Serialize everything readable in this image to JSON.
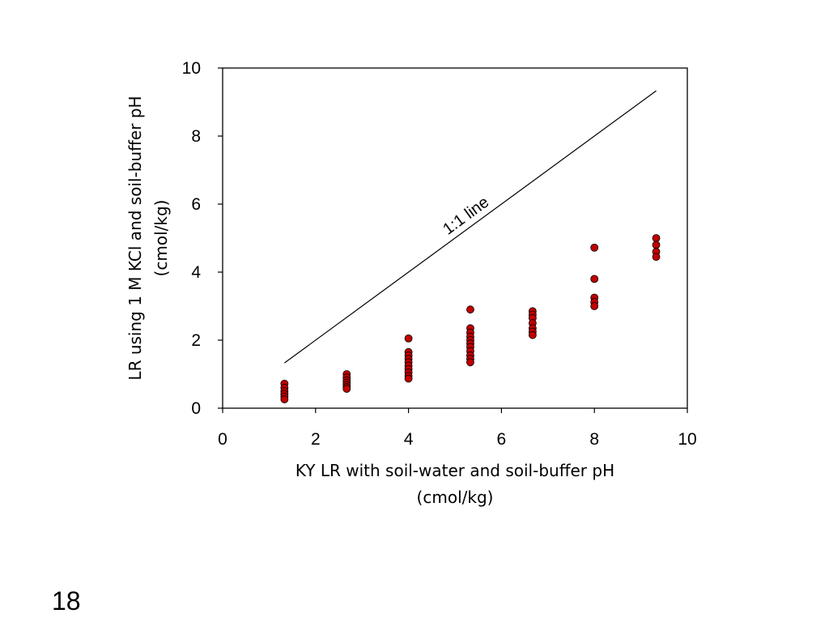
{
  "slide_number": "18",
  "chart_data": {
    "type": "scatter",
    "xlabel_lines": [
      "KY LR with soil-water and soil-buffer pH",
      "(cmol/kg)"
    ],
    "ylabel_lines": [
      "LR using 1 M KCl and soil-buffer pH",
      "(cmol/kg)"
    ],
    "xlim": [
      0,
      10
    ],
    "ylim": [
      0,
      10
    ],
    "x_ticks": [
      0,
      2,
      4,
      6,
      8,
      10
    ],
    "y_ticks": [
      0,
      2,
      4,
      6,
      8,
      10
    ],
    "grid": false,
    "marker_color": "#c00000",
    "reference_line": {
      "label": "1:1 line",
      "from": [
        1.33,
        1.33
      ],
      "to": [
        9.33,
        9.33
      ]
    },
    "points": [
      [
        1.33,
        0.72
      ],
      [
        1.33,
        0.6
      ],
      [
        1.33,
        0.5
      ],
      [
        1.33,
        0.42
      ],
      [
        1.33,
        0.34
      ],
      [
        1.33,
        0.26
      ],
      [
        2.67,
        1.0
      ],
      [
        2.67,
        0.9
      ],
      [
        2.67,
        0.82
      ],
      [
        2.67,
        0.75
      ],
      [
        2.67,
        0.68
      ],
      [
        2.67,
        0.62
      ],
      [
        2.67,
        0.57
      ],
      [
        4.0,
        2.05
      ],
      [
        4.0,
        1.65
      ],
      [
        4.0,
        1.55
      ],
      [
        4.0,
        1.45
      ],
      [
        4.0,
        1.35
      ],
      [
        4.0,
        1.25
      ],
      [
        4.0,
        1.15
      ],
      [
        4.0,
        1.05
      ],
      [
        4.0,
        0.95
      ],
      [
        4.0,
        0.87
      ],
      [
        5.33,
        2.9
      ],
      [
        5.33,
        2.35
      ],
      [
        5.33,
        2.22
      ],
      [
        5.33,
        2.1
      ],
      [
        5.33,
        2.0
      ],
      [
        5.33,
        1.9
      ],
      [
        5.33,
        1.8
      ],
      [
        5.33,
        1.68
      ],
      [
        5.33,
        1.55
      ],
      [
        5.33,
        1.45
      ],
      [
        5.33,
        1.35
      ],
      [
        6.67,
        2.85
      ],
      [
        6.67,
        2.75
      ],
      [
        6.67,
        2.65
      ],
      [
        6.67,
        2.5
      ],
      [
        6.67,
        2.35
      ],
      [
        6.67,
        2.25
      ],
      [
        6.67,
        2.15
      ],
      [
        8.0,
        4.72
      ],
      [
        8.0,
        3.8
      ],
      [
        8.0,
        3.25
      ],
      [
        8.0,
        3.12
      ],
      [
        8.0,
        3.0
      ],
      [
        9.33,
        5.0
      ],
      [
        9.33,
        4.8
      ],
      [
        9.33,
        4.6
      ],
      [
        9.33,
        4.45
      ]
    ]
  }
}
